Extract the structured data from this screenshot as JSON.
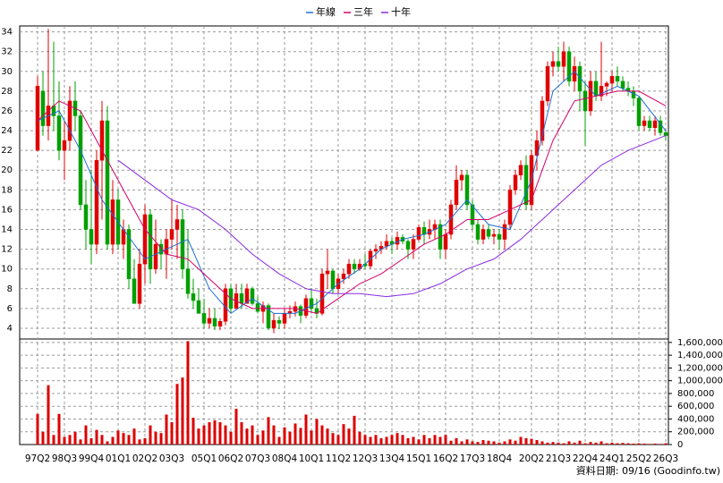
{
  "chart_data": {
    "type": "candlestick",
    "series": [
      {
        "name": "年線",
        "color": "#1f6fd6",
        "x": [
          0,
          4,
          8,
          12,
          16,
          20,
          24,
          28,
          32,
          36,
          40,
          44,
          48,
          52,
          56,
          60,
          64,
          68,
          72,
          76,
          80,
          84,
          88,
          92,
          96,
          100,
          104,
          108,
          112,
          117
        ],
        "values": [
          25,
          26,
          22,
          17,
          14,
          11,
          12,
          13,
          8,
          5.5,
          7,
          5.5,
          5.5,
          6.5,
          8.5,
          10,
          12,
          13,
          13.5,
          14.5,
          17,
          14.5,
          14,
          19,
          28,
          30,
          27.5,
          28.5,
          27.5,
          24
        ]
      },
      {
        "name": "三年",
        "color": "#d6006b",
        "x": [
          0,
          4,
          8,
          12,
          16,
          20,
          24,
          28,
          32,
          36,
          40,
          44,
          48,
          52,
          56,
          60,
          64,
          68,
          72,
          76,
          80,
          84,
          88,
          92,
          96,
          100,
          104,
          108,
          112,
          117
        ],
        "values": [
          25,
          27,
          26,
          22,
          18,
          14,
          11.5,
          11,
          9,
          7,
          6,
          6,
          6,
          5.5,
          7,
          8.5,
          9.5,
          11,
          12.5,
          13.5,
          15,
          15,
          16,
          17,
          23,
          27,
          27.5,
          28,
          28,
          26.5
        ]
      },
      {
        "name": "十年",
        "color": "#8a2be2",
        "x": [
          15,
          20,
          25,
          30,
          35,
          40,
          45,
          50,
          55,
          60,
          65,
          70,
          75,
          80,
          85,
          90,
          95,
          100,
          105,
          110,
          117
        ],
        "values": [
          21,
          19,
          17,
          16,
          14,
          11.5,
          9.5,
          8,
          7.5,
          7.5,
          7.2,
          7.5,
          8.5,
          10,
          11,
          13,
          15.5,
          18,
          20.5,
          22,
          23.5
        ]
      }
    ],
    "categories": [
      "97Q2",
      null,
      null,
      null,
      null,
      "98Q3",
      null,
      null,
      null,
      null,
      "99Q4",
      null,
      null,
      null,
      null,
      "01Q1",
      null,
      null,
      null,
      null,
      "02Q2",
      null,
      null,
      null,
      null,
      "03Q3",
      null,
      null,
      null,
      null,
      null,
      "05Q1",
      null,
      null,
      null,
      null,
      "06Q2",
      null,
      null,
      null,
      null,
      "07Q3",
      null,
      null,
      null,
      null,
      "08Q4",
      null,
      null,
      null,
      null,
      "10Q1",
      null,
      null,
      null,
      null,
      "11Q2",
      null,
      null,
      null,
      null,
      "12Q3",
      null,
      null,
      null,
      null,
      "13Q4",
      null,
      null,
      null,
      null,
      "15Q1",
      null,
      null,
      null,
      null,
      "16Q2",
      null,
      null,
      null,
      null,
      "17Q3",
      null,
      null,
      null,
      null,
      "18Q4",
      null,
      null,
      null,
      null,
      null,
      "20Q2",
      null,
      null,
      null,
      null,
      "21Q3",
      null,
      null,
      null,
      null,
      "22Q4",
      null,
      null,
      null,
      null,
      "24Q1",
      null,
      null,
      null,
      null,
      "25Q2",
      null,
      null,
      null,
      null,
      "26Q3"
    ],
    "ohlc": [
      [
        22,
        29.5,
        22,
        28.5
      ],
      [
        28,
        30,
        23.5,
        24.5
      ],
      [
        24.5,
        34.3,
        23,
        26.5
      ],
      [
        26.5,
        33,
        24,
        25.5
      ],
      [
        25.5,
        29,
        21,
        22
      ],
      [
        22,
        25,
        19,
        23
      ],
      [
        23,
        28.5,
        22,
        27
      ],
      [
        27,
        29,
        24,
        25.5
      ],
      [
        25.5,
        26,
        16,
        16.5
      ],
      [
        16.5,
        19,
        12,
        14
      ],
      [
        14,
        20,
        10.5,
        12.5
      ],
      [
        12.5,
        22,
        11.5,
        21
      ],
      [
        21,
        27,
        15,
        25
      ],
      [
        25,
        26.5,
        12,
        12.5
      ],
      [
        12.5,
        19,
        11.5,
        17
      ],
      [
        17,
        18,
        12,
        12.5
      ],
      [
        12.5,
        15,
        11,
        14
      ],
      [
        14,
        14.5,
        8,
        9
      ],
      [
        9,
        11,
        6.5,
        6.5
      ],
      [
        6.5,
        12,
        6,
        10.5
      ],
      [
        10.5,
        16.5,
        8.5,
        15.5
      ],
      [
        15.5,
        16,
        8.5,
        10
      ],
      [
        10,
        15,
        9.5,
        12.5
      ],
      [
        12.5,
        13,
        10,
        11.5
      ],
      [
        11.5,
        14,
        9,
        13
      ],
      [
        13,
        17,
        12,
        14
      ],
      [
        14,
        16.5,
        11,
        15
      ],
      [
        15,
        16,
        9,
        10
      ],
      [
        10,
        14,
        7,
        7.5
      ],
      [
        7.5,
        9,
        6,
        6.8
      ],
      [
        6.8,
        8,
        5.5,
        5.5
      ],
      [
        5.5,
        7,
        4,
        4.5
      ],
      [
        4.5,
        6,
        4,
        5
      ],
      [
        5,
        6,
        3.8,
        4.2
      ],
      [
        4.2,
        5,
        3.8,
        4.7
      ],
      [
        4.7,
        8.5,
        4.3,
        8
      ],
      [
        8,
        8.5,
        5.5,
        6
      ],
      [
        6,
        8.5,
        6,
        7.5
      ],
      [
        7.5,
        8.5,
        6,
        6.5
      ],
      [
        6.5,
        8.5,
        6.5,
        8
      ],
      [
        8,
        8.2,
        6.3,
        6.5
      ],
      [
        6.5,
        7.2,
        5.5,
        5.7
      ],
      [
        5.7,
        6.7,
        4.5,
        6.3
      ],
      [
        6.3,
        6.5,
        3.8,
        4
      ],
      [
        4,
        5.5,
        3.5,
        4.8
      ],
      [
        4.8,
        5.2,
        3.9,
        4.5
      ],
      [
        4.5,
        6,
        4,
        5.5
      ],
      [
        5.5,
        6.3,
        5,
        5.7
      ],
      [
        5.7,
        6.7,
        5.2,
        6.2
      ],
      [
        6.2,
        6.4,
        4.5,
        5.3
      ],
      [
        5.3,
        7.4,
        5,
        7
      ],
      [
        7,
        8,
        5.5,
        6
      ],
      [
        6,
        7,
        5,
        5.5
      ],
      [
        5.5,
        10,
        5.3,
        9.5
      ],
      [
        9.5,
        12,
        8,
        9.8
      ],
      [
        9.8,
        10,
        7.5,
        8
      ],
      [
        8,
        9.5,
        7.5,
        9
      ],
      [
        9,
        10,
        8.5,
        9.5
      ],
      [
        9.5,
        11,
        9,
        10.5
      ],
      [
        10.5,
        11,
        9.5,
        10
      ],
      [
        10,
        11,
        9.8,
        10.5
      ],
      [
        10.5,
        11.5,
        10,
        10.3
      ],
      [
        10.3,
        12,
        10,
        11.8
      ],
      [
        11.8,
        12.5,
        11,
        12
      ],
      [
        12,
        12.8,
        11.5,
        12.3
      ],
      [
        12.3,
        13.5,
        12,
        12.8
      ],
      [
        12.8,
        13.2,
        11.5,
        12.5
      ],
      [
        12.5,
        13.8,
        12,
        13.2
      ],
      [
        13.2,
        13.5,
        12.5,
        12.8
      ],
      [
        12.8,
        13,
        11,
        12
      ],
      [
        12,
        13.5,
        11,
        13
      ],
      [
        13,
        14.5,
        12.8,
        14.2
      ],
      [
        14.2,
        14.8,
        12.5,
        13.5
      ],
      [
        13.5,
        15,
        13,
        14
      ],
      [
        14,
        15,
        13,
        14.5
      ],
      [
        14.5,
        15,
        11,
        12
      ],
      [
        12,
        14,
        11,
        13.5
      ],
      [
        13.5,
        17,
        13,
        16.5
      ],
      [
        16.5,
        20.5,
        16,
        19
      ],
      [
        19,
        20,
        18,
        19.5
      ],
      [
        19.5,
        20,
        16,
        16.5
      ],
      [
        16.5,
        17,
        14,
        14.5
      ],
      [
        14.5,
        15,
        12.5,
        13
      ],
      [
        13,
        14.5,
        12.5,
        14
      ],
      [
        14,
        14.5,
        13,
        13.3
      ],
      [
        13.3,
        14,
        12.5,
        13.5
      ],
      [
        13.5,
        14,
        12,
        13
      ],
      [
        13,
        15,
        12,
        14.5
      ],
      [
        14.5,
        18.5,
        14,
        18
      ],
      [
        18,
        20,
        17.5,
        19.5
      ],
      [
        19.5,
        21,
        19,
        20.5
      ],
      [
        20.5,
        21.5,
        16,
        16.5
      ],
      [
        16.5,
        22,
        16,
        21.5
      ],
      [
        21.5,
        24,
        20,
        23
      ],
      [
        23,
        27.5,
        22.5,
        27
      ],
      [
        27,
        31,
        26.5,
        30.5
      ],
      [
        30.5,
        32,
        29.5,
        31
      ],
      [
        31,
        32.5,
        30,
        30.5
      ],
      [
        30.5,
        33,
        29,
        32
      ],
      [
        32,
        32.5,
        28.5,
        29
      ],
      [
        29,
        31.5,
        28,
        30.5
      ],
      [
        30.5,
        31,
        26,
        28
      ],
      [
        28,
        29,
        22.5,
        26
      ],
      [
        26,
        30,
        25.5,
        29
      ],
      [
        29,
        30,
        27,
        27.5
      ],
      [
        27.5,
        33,
        27,
        28.5
      ],
      [
        28.5,
        29,
        27.5,
        28.8
      ],
      [
        28.8,
        30,
        28,
        29.5
      ],
      [
        29.5,
        30.5,
        28.5,
        29
      ],
      [
        29,
        29.5,
        28,
        28.3
      ],
      [
        28.3,
        29,
        27.5,
        28
      ],
      [
        28,
        28.5,
        26.5,
        27.3
      ],
      [
        27.3,
        27.5,
        24,
        24.5
      ],
      [
        24.5,
        25.5,
        24,
        25
      ],
      [
        25,
        25.5,
        24,
        24.3
      ],
      [
        24.3,
        25.5,
        23.5,
        25
      ],
      [
        25,
        25.5,
        23.5,
        23.8
      ],
      [
        23.8,
        24,
        23,
        23.5
      ]
    ],
    "up_color": "#e00000",
    "down_color": "#00a000",
    "volume": [
      480000,
      200000,
      930000,
      150000,
      480000,
      120000,
      150000,
      200000,
      80000,
      300000,
      100000,
      230000,
      150000,
      50000,
      120000,
      220000,
      180000,
      150000,
      250000,
      80000,
      100000,
      300000,
      200000,
      180000,
      470000,
      350000,
      950000,
      1050000,
      1620000,
      420000,
      250000,
      300000,
      350000,
      380000,
      350000,
      300000,
      200000,
      560000,
      350000,
      250000,
      300000,
      150000,
      220000,
      430000,
      300000,
      120000,
      270000,
      200000,
      330000,
      260000,
      470000,
      220000,
      400000,
      300000,
      250000,
      180000,
      150000,
      320000,
      250000,
      450000,
      200000,
      150000,
      120000,
      150000,
      100000,
      120000,
      150000,
      180000,
      150000,
      100000,
      120000,
      80000,
      150000,
      100000,
      150000,
      120000,
      150000,
      60000,
      100000,
      50000,
      80000,
      50000,
      40000,
      70000,
      60000,
      50000,
      30000,
      50000,
      80000,
      60000,
      120000,
      100000,
      90000,
      70000,
      50000,
      30000,
      40000,
      30000,
      20000,
      50000,
      30000,
      60000,
      20000,
      40000,
      30000,
      50000,
      20000,
      30000,
      20000,
      25000,
      20000,
      15000,
      20000,
      15000,
      10000,
      15000,
      10000,
      20000
    ],
    "volume_color": "#dd0000",
    "ylim": [
      3,
      34.6
    ],
    "yticks": [
      4,
      6,
      8,
      10,
      12,
      14,
      16,
      18,
      20,
      22,
      24,
      26,
      28,
      30,
      32,
      34
    ],
    "y2lim": [
      0,
      1640000
    ],
    "y2ticks": [
      0,
      {
        "value": 200000,
        "label": "200,000"
      },
      {
        "value": 400000,
        "label": "400,000"
      },
      {
        "value": 600000,
        "label": "600,000"
      },
      {
        "value": 800000,
        "label": "800,000"
      },
      {
        "value": 1000000,
        "label": "1,000,000"
      },
      {
        "value": 1200000,
        "label": "1,200,000"
      },
      {
        "value": 1400000,
        "label": "1,400,000"
      },
      {
        "value": 1600000,
        "label": "1,600,000"
      }
    ],
    "grid": true,
    "source_note": "資料日期: 09/16 (Goodinfo.tw)"
  }
}
